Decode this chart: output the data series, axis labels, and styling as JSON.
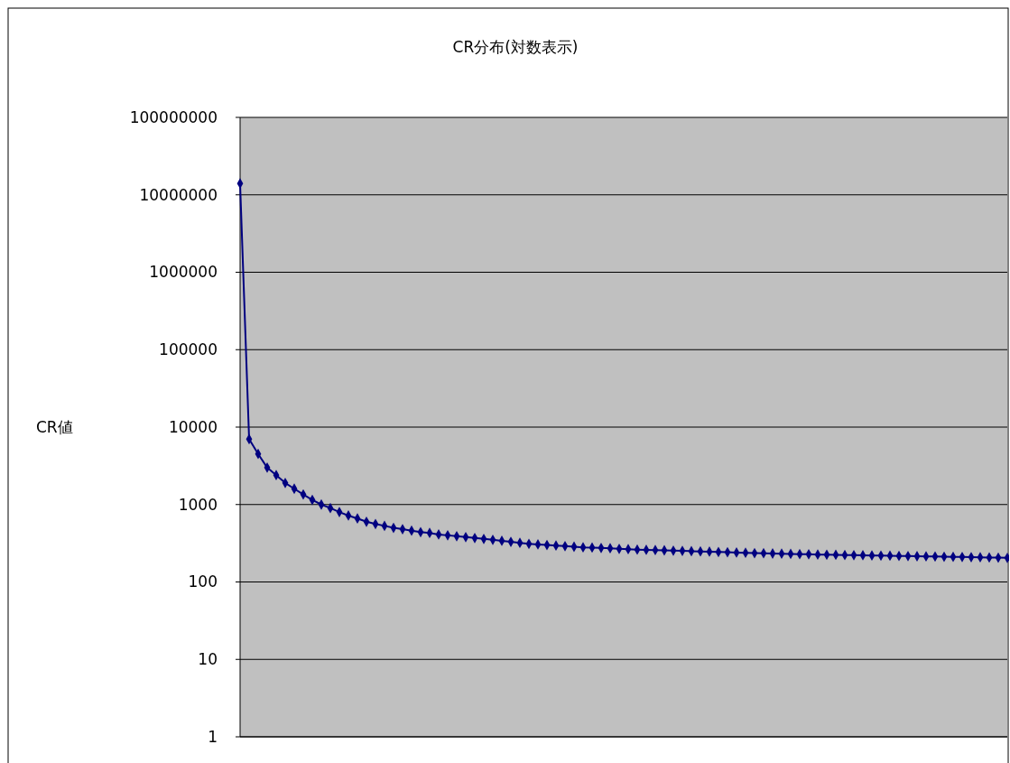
{
  "chart_data": {
    "type": "line",
    "title": "CR分布(対数表示)",
    "ylabel": "CR値",
    "log": true,
    "grid": "y",
    "marker": "diamond",
    "line_style": "solid",
    "tick_labels": "y",
    "categories": [
      null,
      null,
      null,
      null,
      null,
      null,
      null,
      null,
      null,
      null,
      null,
      null,
      null,
      null,
      null,
      null,
      null,
      null,
      null,
      null,
      null,
      null,
      null,
      null,
      null,
      null,
      null,
      null,
      null,
      null,
      null,
      null,
      null,
      null,
      null,
      null,
      null,
      null,
      null,
      null,
      null,
      null,
      null,
      null,
      null,
      null,
      null,
      null,
      null,
      null,
      null,
      null,
      null,
      null,
      null,
      null,
      null,
      null,
      null,
      null,
      null,
      null,
      null,
      null,
      null,
      null,
      null,
      null,
      null,
      null,
      null,
      null,
      null,
      null,
      null,
      null,
      null,
      null,
      null,
      null,
      null,
      null,
      null,
      null,
      null,
      null
    ],
    "series": [
      {
        "color": "#000080",
        "values": [
          14000000,
          7000,
          4500,
          3000,
          2400,
          1900,
          1600,
          1350,
          1150,
          1000,
          900,
          800,
          720,
          660,
          600,
          560,
          530,
          500,
          480,
          460,
          440,
          430,
          410,
          400,
          390,
          380,
          370,
          360,
          350,
          340,
          330,
          320,
          310,
          305,
          300,
          295,
          290,
          285,
          280,
          278,
          275,
          272,
          268,
          265,
          262,
          260,
          258,
          256,
          254,
          252,
          250,
          248,
          246,
          244,
          242,
          240,
          238,
          236,
          235,
          233,
          232,
          230,
          229,
          228,
          226,
          225,
          224,
          223,
          222,
          221,
          220,
          219,
          218,
          217,
          216,
          215,
          214,
          213,
          212,
          211,
          210,
          209,
          208,
          207,
          206,
          205
        ]
      }
    ],
    "ylim": [
      1,
      100000000
    ],
    "yticks": [
      1,
      10,
      100,
      1000,
      10000,
      100000,
      1000000,
      10000000,
      100000000
    ]
  }
}
